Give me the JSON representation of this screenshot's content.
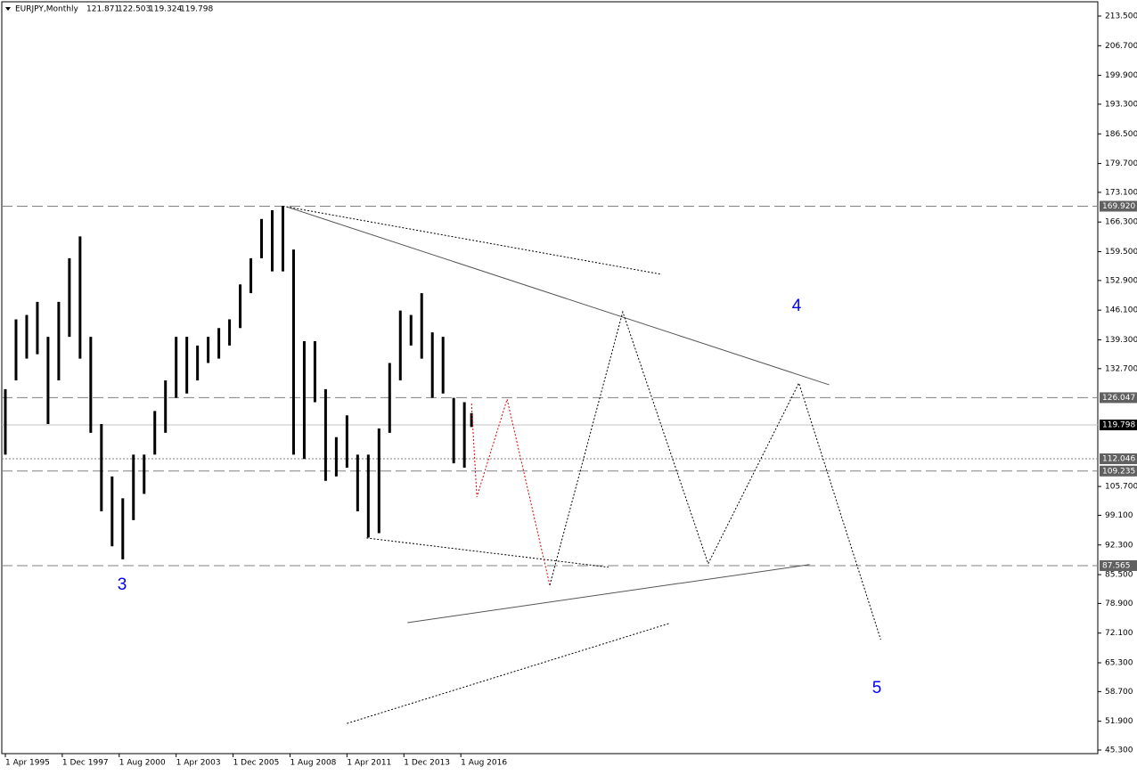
{
  "chart_data": {
    "type": "ohlc",
    "title": "EURJPY,Monthly",
    "last_ohlc": [
      121.871,
      122.503,
      119.324,
      119.798
    ],
    "color": "#000000",
    "x": [
      "1995-04",
      "1995-10",
      "1996-04",
      "1996-10",
      "1997-04",
      "1997-10",
      "1998-04",
      "1998-10",
      "1999-04",
      "1999-10",
      "2000-04",
      "2000-10",
      "2001-04",
      "2001-10",
      "2002-04",
      "2002-10",
      "2003-04",
      "2003-10",
      "2004-04",
      "2004-10",
      "2005-04",
      "2005-10",
      "2006-04",
      "2006-10",
      "2007-04",
      "2007-10",
      "2008-04",
      "2008-10",
      "2009-04",
      "2009-10",
      "2010-04",
      "2010-10",
      "2011-04",
      "2011-10",
      "2012-04",
      "2012-10",
      "2013-04",
      "2013-10",
      "2014-04",
      "2014-10",
      "2015-04",
      "2015-10",
      "2016-04",
      "2016-10",
      "2017-02"
    ],
    "high": [
      128,
      144,
      145,
      148,
      140,
      148,
      158,
      163,
      140,
      120,
      108,
      103,
      113,
      113,
      123,
      130,
      140,
      140,
      138,
      140,
      142,
      144,
      152,
      158,
      167,
      169,
      170,
      160,
      139,
      139,
      128,
      117,
      122,
      113,
      113,
      119,
      134,
      146,
      145,
      150,
      141,
      140,
      126,
      125,
      122.503
    ],
    "low": [
      113,
      130,
      135,
      136,
      120,
      130,
      140,
      135,
      118,
      100,
      92,
      89,
      98,
      104,
      113,
      118,
      126,
      127,
      130,
      134,
      135,
      138,
      142,
      150,
      158,
      155,
      155,
      113,
      112,
      125,
      107,
      108,
      110,
      100,
      94,
      95,
      118,
      130,
      138,
      135,
      126,
      127,
      111,
      110,
      119.324
    ],
    "xlim": [
      "1995-02",
      "2046-06"
    ],
    "ylim": [
      45.3,
      213.5
    ],
    "xticks": [
      {
        "value": "1995-04",
        "label": "1 Apr 1995"
      },
      {
        "value": "1997-12",
        "label": "1 Dec 1997"
      },
      {
        "value": "2000-08",
        "label": "1 Aug 2000"
      },
      {
        "value": "2003-04",
        "label": "1 Apr 2003"
      },
      {
        "value": "2005-12",
        "label": "1 Dec 2005"
      },
      {
        "value": "2008-08",
        "label": "1 Aug 2008"
      },
      {
        "value": "2011-04",
        "label": "1 Apr 2011"
      },
      {
        "value": "2013-12",
        "label": "1 Dec 2013"
      },
      {
        "value": "2016-08",
        "label": "1 Aug 2016"
      }
    ],
    "yticks": [
      {
        "value": 213.5,
        "label": "213.500"
      },
      {
        "value": 206.7,
        "label": "206.700"
      },
      {
        "value": 199.9,
        "label": "199.900"
      },
      {
        "value": 193.3,
        "label": "193.300"
      },
      {
        "value": 186.5,
        "label": "186.500"
      },
      {
        "value": 179.7,
        "label": "179.700"
      },
      {
        "value": 173.1,
        "label": "173.100"
      },
      {
        "value": 166.3,
        "label": "166.300"
      },
      {
        "value": 159.5,
        "label": "159.500"
      },
      {
        "value": 152.9,
        "label": "152.900"
      },
      {
        "value": 146.1,
        "label": "146.100"
      },
      {
        "value": 139.3,
        "label": "139.300"
      },
      {
        "value": 132.7,
        "label": "132.700"
      },
      {
        "value": 105.7,
        "label": "105.700"
      },
      {
        "value": 99.1,
        "label": "99.100"
      },
      {
        "value": 92.3,
        "label": "92.300"
      },
      {
        "value": 85.5,
        "label": "85.500"
      },
      {
        "value": 78.9,
        "label": "78.900"
      },
      {
        "value": 72.1,
        "label": "72.100"
      },
      {
        "value": 65.3,
        "label": "65.300"
      },
      {
        "value": 58.7,
        "label": "58.700"
      },
      {
        "value": 51.9,
        "label": "51.900"
      },
      {
        "value": 45.3,
        "label": "45.300"
      }
    ],
    "levels": [
      {
        "value": 169.92,
        "label": "169.920",
        "style": "dashed",
        "color": "#808080"
      },
      {
        "value": 126.047,
        "label": "126.047",
        "style": "dashed",
        "color": "#808080"
      },
      {
        "value": 119.798,
        "label": "119.798",
        "style": "solid",
        "color": "#c0c0c0"
      },
      {
        "value": 112.046,
        "label": "112.046",
        "style": "dotted",
        "color": "#808080"
      },
      {
        "value": 109.235,
        "label": "109.235",
        "style": "dashed",
        "color": "#808080"
      },
      {
        "value": 87.565,
        "label": "87.565",
        "style": "dashed",
        "color": "#808080"
      }
    ],
    "trendlines": [
      {
        "x": [
          "2008-06",
          "2033-11"
        ],
        "y": [
          169.8,
          129.0
        ],
        "style": "solid",
        "color": "#555555"
      },
      {
        "x": [
          "2008-06",
          "2026-01"
        ],
        "y": [
          169.8,
          154.3
        ],
        "style": "dotted",
        "color": "#000000"
      },
      {
        "x": [
          "2014-02",
          "2032-12"
        ],
        "y": [
          74.5,
          87.8
        ],
        "style": "solid",
        "color": "#555555"
      },
      {
        "x": [
          "2011-04",
          "2026-05"
        ],
        "y": [
          51.4,
          74.3
        ],
        "style": "dotted",
        "color": "#000000"
      },
      {
        "x": [
          "2012-03",
          "2023-07"
        ],
        "y": [
          93.9,
          87.2
        ],
        "style": "dotted",
        "color": "#000000"
      },
      {
        "x": [
          "2017-02",
          "2017-05",
          "2018-10",
          "2020-10"
        ],
        "y": [
          124.7,
          103.3,
          125.7,
          83.1
        ],
        "style": "dotted",
        "color": "#e00000"
      },
      {
        "x": [
          "2020-10",
          "2024-03",
          "2028-03",
          "2032-06",
          "2036-04"
        ],
        "y": [
          83.1,
          145.7,
          88.0,
          129.4,
          70.6
        ],
        "style": "dotted",
        "color": "#000000"
      }
    ],
    "wave_labels": [
      "3",
      "4",
      "5"
    ]
  }
}
